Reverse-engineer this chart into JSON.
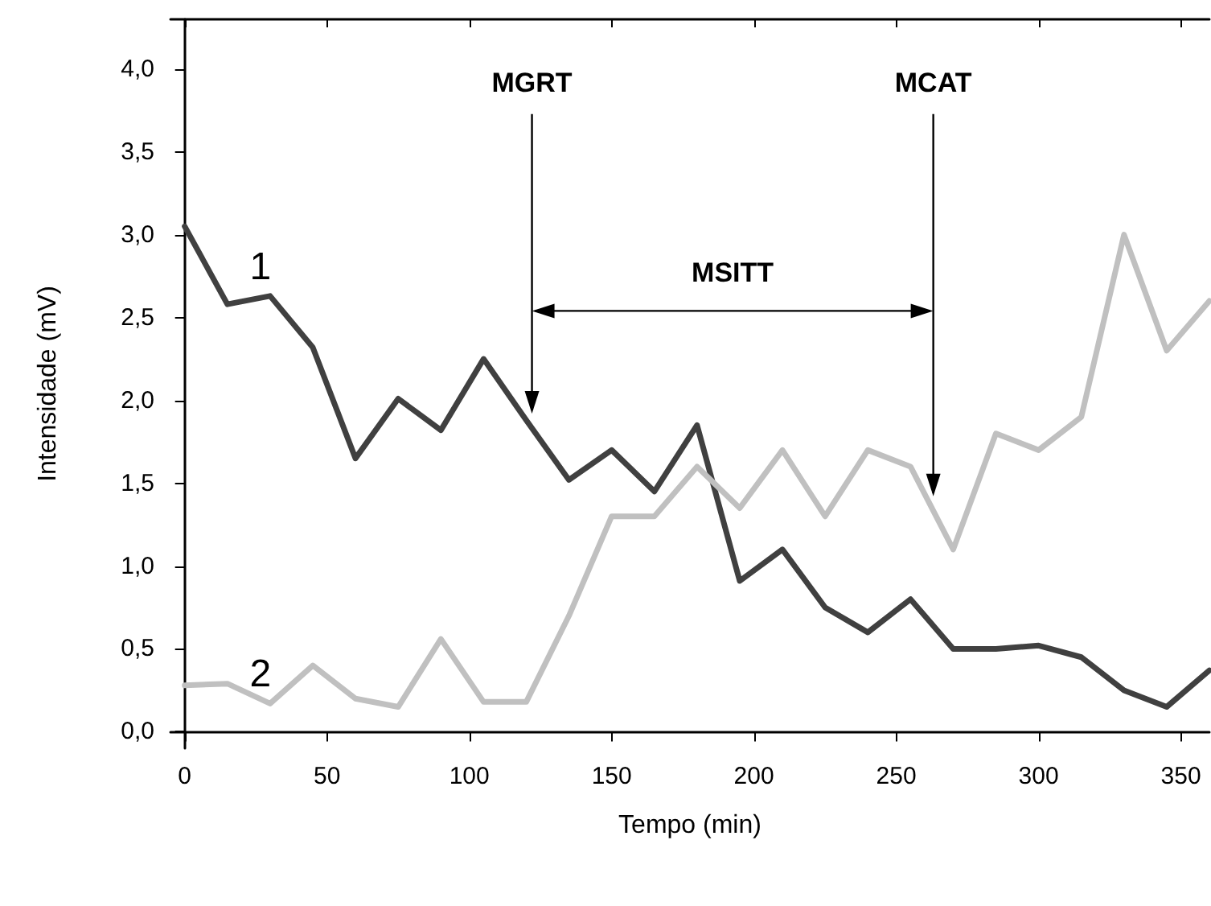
{
  "chart_data": {
    "type": "line",
    "xlabel": "Tempo (min)",
    "ylabel": "Intensidade (mV)",
    "x": [
      0,
      15,
      30,
      45,
      60,
      75,
      90,
      105,
      120,
      135,
      150,
      165,
      180,
      195,
      210,
      225,
      240,
      255,
      270,
      285,
      300,
      315,
      330,
      345,
      360
    ],
    "series": [
      {
        "name": "1",
        "color": "#404040",
        "values": [
          3.05,
          2.58,
          2.63,
          2.32,
          1.65,
          2.01,
          1.82,
          2.25,
          1.88,
          1.52,
          1.7,
          1.45,
          1.85,
          0.91,
          1.1,
          0.75,
          0.6,
          0.8,
          0.5,
          0.5,
          0.52,
          0.45,
          0.25,
          0.15,
          0.37
        ]
      },
      {
        "name": "2",
        "color": "#c0c0c0",
        "values": [
          0.28,
          0.29,
          0.17,
          0.4,
          0.2,
          0.15,
          0.56,
          0.18,
          0.18,
          0.7,
          1.3,
          1.3,
          1.6,
          1.35,
          1.7,
          1.3,
          1.7,
          1.6,
          1.1,
          1.8,
          1.7,
          1.9,
          3.0,
          2.3,
          2.6
        ]
      }
    ],
    "xlim": [
      -5,
      360
    ],
    "xticks": [
      0,
      50,
      100,
      150,
      200,
      250,
      300,
      350
    ],
    "ylim": [
      -0.1,
      4.3
    ],
    "yticks": [
      {
        "value": 0,
        "label": "0,0"
      },
      {
        "value": 0.5,
        "label": "0,5"
      },
      {
        "value": 1,
        "label": "1,0"
      },
      {
        "value": 1.5,
        "label": "1,5"
      },
      {
        "value": 2,
        "label": "2,0"
      },
      {
        "value": 2.5,
        "label": "2,5"
      },
      {
        "value": 3,
        "label": "3,0"
      },
      {
        "value": 3.5,
        "label": "3,5"
      },
      {
        "value": 4,
        "label": "4,0"
      }
    ],
    "ref_lines": [
      {
        "axis": "x",
        "value": 122,
        "label": "MGRT"
      },
      {
        "axis": "x",
        "value": 263,
        "label": "MCAT"
      }
    ],
    "annotations": [
      "MSITT"
    ],
    "grid": false,
    "marker": "none",
    "line_style": "solid"
  }
}
